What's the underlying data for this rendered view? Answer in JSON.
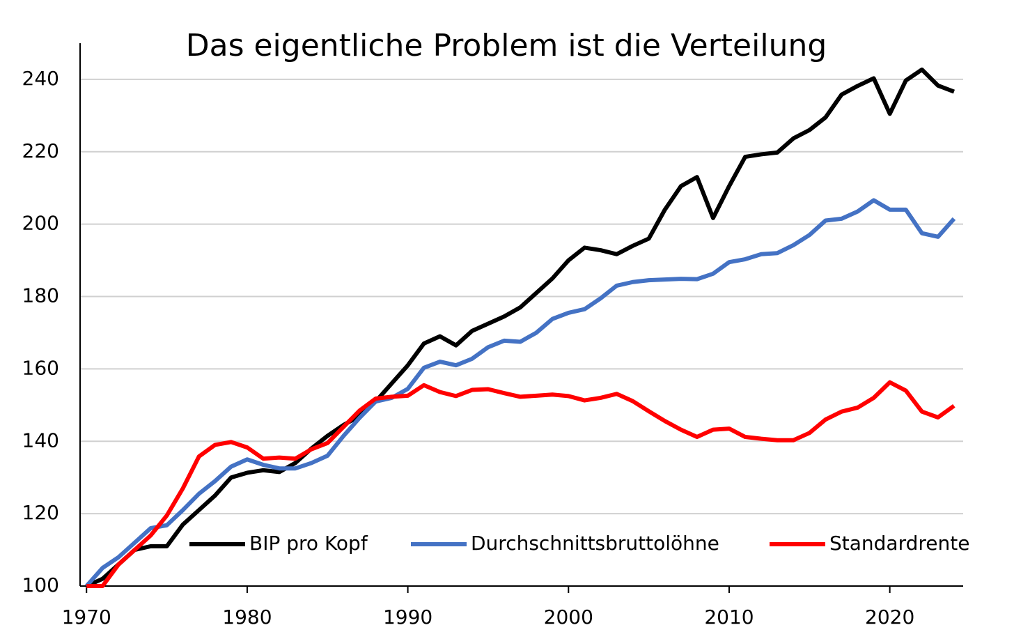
{
  "chart_data": {
    "type": "line",
    "title": "Das eigentliche Problem ist die Verteilung",
    "x": [
      1970,
      1971,
      1972,
      1973,
      1974,
      1975,
      1976,
      1977,
      1978,
      1979,
      1980,
      1981,
      1982,
      1983,
      1984,
      1985,
      1986,
      1987,
      1988,
      1989,
      1990,
      1991,
      1992,
      1993,
      1994,
      1995,
      1996,
      1997,
      1998,
      1999,
      2000,
      2001,
      2002,
      2003,
      2004,
      2005,
      2006,
      2007,
      2008,
      2009,
      2010,
      2011,
      2012,
      2013,
      2014,
      2015,
      2016,
      2017,
      2018,
      2019,
      2020,
      2021,
      2022,
      2023,
      2024
    ],
    "series": [
      {
        "name": "BIP pro Kopf",
        "color": "#000000",
        "values": [
          100,
          102,
          106,
          110,
          111,
          111,
          117,
          121,
          125,
          130,
          131.3,
          132,
          131.5,
          134,
          138,
          141.5,
          144.5,
          147,
          151,
          156,
          161,
          167,
          169,
          166.5,
          170.5,
          172.5,
          174.5,
          177,
          181,
          185,
          190,
          193.5,
          192.8,
          191.7,
          194,
          196,
          204,
          210.5,
          213,
          201.7,
          210.5,
          218.6,
          219.3,
          219.8,
          223.7,
          226,
          229.5,
          235.8,
          238.2,
          240.3,
          230.5,
          239.7,
          242.7,
          238.3,
          236.6
        ]
      },
      {
        "name": "Durchschnittsbruttolöhne",
        "color": "#4472c4",
        "values": [
          100,
          105,
          108,
          112,
          116,
          116.8,
          121,
          125.5,
          129,
          133,
          135,
          133.5,
          132.5,
          132.5,
          134,
          136,
          141.5,
          146.5,
          151,
          152,
          154.5,
          160.3,
          162,
          161,
          162.8,
          166,
          167.8,
          167.5,
          170,
          173.8,
          175.5,
          176.5,
          179.5,
          183,
          184,
          184.5,
          184.7,
          184.9,
          184.8,
          186.3,
          189.5,
          190.3,
          191.7,
          192,
          194.2,
          197,
          201,
          201.5,
          203.5,
          206.6,
          204,
          204,
          197.5,
          196.5,
          201.5
        ]
      },
      {
        "name": "Standardrente",
        "color": "#ff0000",
        "values": [
          100,
          100,
          106,
          110,
          114,
          119.5,
          127,
          135.8,
          139,
          139.8,
          138.3,
          135.2,
          135.5,
          135.2,
          137.8,
          139.5,
          144,
          148.5,
          151.8,
          152.3,
          152.6,
          155.5,
          153.6,
          152.5,
          154.2,
          154.4,
          153.3,
          152.3,
          152.6,
          152.9,
          152.5,
          151.3,
          152,
          153.1,
          151.1,
          148.3,
          145.6,
          143.2,
          141.2,
          143.2,
          143.5,
          141.2,
          140.7,
          140.3,
          140.3,
          142.3,
          146,
          148.2,
          149.3,
          152,
          156.3,
          154,
          148.2,
          146.6,
          149.8
        ]
      }
    ],
    "xlim": [
      1969.6,
      2025
    ],
    "xticks": [
      1970,
      1980,
      1990,
      2000,
      2010,
      2020
    ],
    "ylim": [
      100,
      250
    ],
    "yticks": [
      100,
      120,
      140,
      160,
      180,
      200,
      220,
      240
    ],
    "grid": true,
    "legend": "bottom"
  }
}
